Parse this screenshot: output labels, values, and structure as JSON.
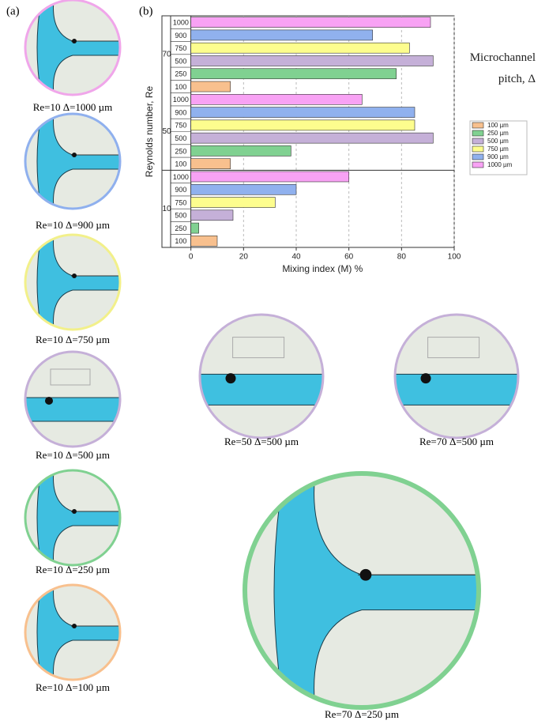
{
  "figure": {
    "panel_a_label": "(a)",
    "panel_b_label": "(b)",
    "captions": [
      "Re=10  Δ=1000 µm",
      "Re=10  Δ=900 µm",
      "Re=10  Δ=750 µm",
      "Re=10  Δ=500 µm",
      "Re=10  Δ=250 µm",
      "Re=10  Δ=100 µm",
      "Re=50  Δ=500 µm",
      "Re=70  Δ=500 µm",
      "Re=70  Δ=250 µm"
    ]
  },
  "chart_data": {
    "type": "grouped-barh",
    "y_label": "Reynolds number, Re",
    "x_label": "Mixing index (M) %",
    "legend_title": "Microchannel pitch, Δ",
    "categories": [
      "10",
      "50",
      "70"
    ],
    "bar_labels": [
      "100",
      "250",
      "500",
      "750",
      "900",
      "1000"
    ],
    "series": [
      {
        "name": "100 µm",
        "color": "#f8c08e",
        "values": [
          10,
          15,
          15
        ]
      },
      {
        "name": "250 µm",
        "color": "#80d191",
        "values": [
          3,
          38,
          78
        ]
      },
      {
        "name": "500 µm",
        "color": "#c5b0d8",
        "values": [
          16,
          92,
          92
        ]
      },
      {
        "name": "750 µm",
        "color": "#fdfd8e",
        "values": [
          32,
          85,
          83
        ]
      },
      {
        "name": "900 µm",
        "color": "#90b1ee",
        "values": [
          40,
          85,
          69
        ]
      },
      {
        "name": "1000 µm",
        "color": "#f8a2f4",
        "values": [
          60,
          65,
          91
        ]
      }
    ],
    "xlim": [
      -11,
      100
    ],
    "xticks": [
      0,
      20,
      40,
      60,
      80,
      100
    ],
    "grid": true
  }
}
